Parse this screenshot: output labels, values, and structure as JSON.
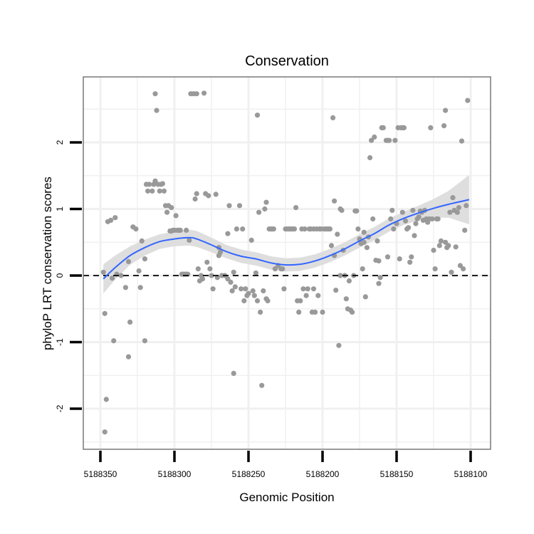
{
  "chart_data": {
    "type": "scatter",
    "title": "Conservation",
    "xlabel": "Genomic Position",
    "ylabel": "phyloP LRT conservation scores",
    "x_reversed": true,
    "xlim": [
      5188100,
      5188350
    ],
    "ylim": [
      -2.55,
      2.95
    ],
    "x_ticks": [
      5188350,
      5188300,
      5188250,
      5188200,
      5188150,
      5188100
    ],
    "y_ticks": [
      -2,
      -1,
      0,
      1,
      2
    ],
    "reference_line": {
      "y": 0,
      "style": "dashed"
    },
    "point_color": "#999999",
    "smooth_color": "#3366ff",
    "ribbon_color": "#dcdcdc",
    "panel_border_color": "#808080",
    "grid_color": "#f0f0f0",
    "points": [
      [
        5188348,
        0.05
      ],
      [
        5188347,
        -0.57
      ],
      [
        5188346,
        -1.86
      ],
      [
        5188347,
        -2.35
      ],
      [
        5188345,
        0.81
      ],
      [
        5188343,
        0.83
      ],
      [
        5188341,
        -0.98
      ],
      [
        5188340,
        0.87
      ],
      [
        5188342,
        -0.04
      ],
      [
        5188339,
        0.02
      ],
      [
        5188336,
        0.0
      ],
      [
        5188333,
        -0.18
      ],
      [
        5188331,
        0.21
      ],
      [
        5188331,
        -1.22
      ],
      [
        5188330,
        -0.7
      ],
      [
        5188328,
        0.73
      ],
      [
        5188326,
        0.7
      ],
      [
        5188324,
        0.07
      ],
      [
        5188323,
        -0.18
      ],
      [
        5188322,
        0.52
      ],
      [
        5188320,
        -0.98
      ],
      [
        5188320,
        0.25
      ],
      [
        5188319,
        1.37
      ],
      [
        5188318,
        1.27
      ],
      [
        5188317,
        1.37
      ],
      [
        5188315,
        1.27
      ],
      [
        5188314,
        1.37
      ],
      [
        5188313,
        1.42
      ],
      [
        5188313,
        2.73
      ],
      [
        5188312,
        2.48
      ],
      [
        5188311,
        1.37
      ],
      [
        5188310,
        1.27
      ],
      [
        5188309,
        1.37
      ],
      [
        5188308,
        1.38
      ],
      [
        5188307,
        1.27
      ],
      [
        5188306,
        1.05
      ],
      [
        5188305,
        0.95
      ],
      [
        5188304,
        1.05
      ],
      [
        5188303,
        0.67
      ],
      [
        5188302,
        0.67
      ],
      [
        5188301,
        0.68
      ],
      [
        5188299,
        0.9
      ],
      [
        5188298,
        0.68
      ],
      [
        5188297,
        0.68
      ],
      [
        5188296,
        0.68
      ],
      [
        5188295,
        0.02
      ],
      [
        5188294,
        0.02
      ],
      [
        5188293,
        0.02
      ],
      [
        5188292,
        0.02
      ],
      [
        5188291,
        0.02
      ],
      [
        5188290,
        0.53
      ],
      [
        5188289,
        2.73
      ],
      [
        5188287,
        2.73
      ],
      [
        5188285,
        2.73
      ],
      [
        5188286,
        1.15
      ],
      [
        5188285,
        1.23
      ],
      [
        5188284,
        0.1
      ],
      [
        5188283,
        -0.08
      ],
      [
        5188282,
        0.0
      ],
      [
        5188281,
        -0.05
      ],
      [
        5188280,
        2.74
      ],
      [
        5188279,
        1.23
      ],
      [
        5188278,
        0.2
      ],
      [
        5188277,
        1.2
      ],
      [
        5188276,
        0.1
      ],
      [
        5188275,
        0.0
      ],
      [
        5188274,
        -0.2
      ],
      [
        5188272,
        1.22
      ],
      [
        5188271,
        -0.03
      ],
      [
        5188270,
        0.42
      ],
      [
        5188269,
        0.35
      ],
      [
        5188268,
        0.0
      ],
      [
        5188266,
        0.0
      ],
      [
        5188264,
        -0.05
      ],
      [
        5188264,
        0.63
      ],
      [
        5188263,
        1.05
      ],
      [
        5188262,
        -0.1
      ],
      [
        5188261,
        -0.23
      ],
      [
        5188260,
        -1.47
      ],
      [
        5188259,
        -0.17
      ],
      [
        5188258,
        0.7
      ],
      [
        5188256,
        1.05
      ],
      [
        5188255,
        -0.2
      ],
      [
        5188254,
        0.7
      ],
      [
        5188253,
        -0.38
      ],
      [
        5188252,
        -0.2
      ],
      [
        5188251,
        -0.3
      ],
      [
        5188250,
        -0.27
      ],
      [
        5188248,
        0.53
      ],
      [
        5188247,
        -0.23
      ],
      [
        5188246,
        -0.3
      ],
      [
        5188245,
        0.04
      ],
      [
        5188244,
        2.41
      ],
      [
        5188244,
        -0.38
      ],
      [
        5188243,
        0.95
      ],
      [
        5188242,
        -0.55
      ],
      [
        5188241,
        -1.65
      ],
      [
        5188240,
        -0.23
      ],
      [
        5188239,
        1.0
      ],
      [
        5188238,
        1.1
      ],
      [
        5188237,
        -0.38
      ],
      [
        5188236,
        0.7
      ],
      [
        5188235,
        0.7
      ],
      [
        5188234,
        0.7
      ],
      [
        5188233,
        0.7
      ],
      [
        5188232,
        0.1
      ],
      [
        5188230,
        0.15
      ],
      [
        5188228,
        0.1
      ],
      [
        5188227,
        0.1
      ],
      [
        5188226,
        -0.2
      ],
      [
        5188225,
        0.7
      ],
      [
        5188224,
        0.7
      ],
      [
        5188223,
        0.7
      ],
      [
        5188222,
        0.7
      ],
      [
        5188221,
        0.7
      ],
      [
        5188220,
        0.7
      ],
      [
        5188219,
        0.7
      ],
      [
        5188218,
        1.02
      ],
      [
        5188217,
        -0.38
      ],
      [
        5188216,
        -0.55
      ],
      [
        5188215,
        -0.38
      ],
      [
        5188214,
        0.7
      ],
      [
        5188213,
        -0.2
      ],
      [
        5188212,
        0.7
      ],
      [
        5188211,
        -0.3
      ],
      [
        5188210,
        -0.2
      ],
      [
        5188209,
        0.7
      ],
      [
        5188208,
        0.7
      ],
      [
        5188207,
        -0.55
      ],
      [
        5188206,
        0.7
      ],
      [
        5188205,
        -0.55
      ],
      [
        5188204,
        0.7
      ],
      [
        5188203,
        -0.3
      ],
      [
        5188202,
        0.7
      ],
      [
        5188201,
        0.7
      ],
      [
        5188200,
        -0.55
      ],
      [
        5188199,
        0.7
      ],
      [
        5188198,
        0.7
      ],
      [
        5188197,
        0.7
      ],
      [
        5188196,
        0.7
      ],
      [
        5188195,
        0.7
      ],
      [
        5188194,
        0.45
      ],
      [
        5188193,
        2.37
      ],
      [
        5188192,
        0.3
      ],
      [
        5188192,
        1.12
      ],
      [
        5188191,
        -0.22
      ],
      [
        5188190,
        0.62
      ],
      [
        5188189,
        -1.05
      ],
      [
        5188188,
        1.0
      ],
      [
        5188187,
        0.98
      ],
      [
        5188186,
        0.38
      ],
      [
        5188185,
        0.0
      ],
      [
        5188184,
        -0.35
      ],
      [
        5188183,
        -0.5
      ],
      [
        5188182,
        -0.08
      ],
      [
        5188181,
        -0.52
      ],
      [
        5188180,
        -0.55
      ],
      [
        5188179,
        0.0
      ],
      [
        5188178,
        0.97
      ],
      [
        5188177,
        0.97
      ],
      [
        5188176,
        0.7
      ],
      [
        5188175,
        0.55
      ],
      [
        5188174,
        0.48
      ],
      [
        5188173,
        0.1
      ],
      [
        5188172,
        0.5
      ],
      [
        5188171,
        -0.32
      ],
      [
        5188170,
        0.42
      ],
      [
        5188169,
        0.58
      ],
      [
        5188168,
        1.77
      ],
      [
        5188167,
        2.03
      ],
      [
        5188166,
        0.85
      ],
      [
        5188165,
        2.08
      ],
      [
        5188164,
        0.23
      ],
      [
        5188163,
        0.52
      ],
      [
        5188162,
        -0.12
      ],
      [
        5188162,
        0.22
      ],
      [
        5188161,
        -0.03
      ],
      [
        5188160,
        2.22
      ],
      [
        5188159,
        2.22
      ],
      [
        5188157,
        2.03
      ],
      [
        5188156,
        2.03
      ],
      [
        5188155,
        2.03
      ],
      [
        5188154,
        0.85
      ],
      [
        5188153,
        0.98
      ],
      [
        5188152,
        0.7
      ],
      [
        5188151,
        2.03
      ],
      [
        5188150,
        0.78
      ],
      [
        5188149,
        2.22
      ],
      [
        5188148,
        0.25
      ],
      [
        5188147,
        2.22
      ],
      [
        5188146,
        2.22
      ],
      [
        5188145,
        2.22
      ],
      [
        5188144,
        0.82
      ],
      [
        5188143,
        0.7
      ],
      [
        5188142,
        0.72
      ],
      [
        5188141,
        0.2
      ],
      [
        5188140,
        0.28
      ],
      [
        5188139,
        0.98
      ],
      [
        5188138,
        0.6
      ],
      [
        5188137,
        0.78
      ],
      [
        5188136,
        0.85
      ],
      [
        5188135,
        0.88
      ],
      [
        5188134,
        0.97
      ],
      [
        5188133,
        0.95
      ],
      [
        5188132,
        0.83
      ],
      [
        5188131,
        0.98
      ],
      [
        5188130,
        0.85
      ],
      [
        5188129,
        0.8
      ],
      [
        5188128,
        0.85
      ],
      [
        5188127,
        2.22
      ],
      [
        5188126,
        0.85
      ],
      [
        5188125,
        0.38
      ],
      [
        5188124,
        0.1
      ],
      [
        5188123,
        0.85
      ],
      [
        5188122,
        0.85
      ],
      [
        5188121,
        0.45
      ],
      [
        5188120,
        0.52
      ],
      [
        5188118,
        2.25
      ],
      [
        5188117,
        2.48
      ],
      [
        5188116,
        0.42
      ],
      [
        5188115,
        0.45
      ],
      [
        5188114,
        0.95
      ],
      [
        5188113,
        0.05
      ],
      [
        5188112,
        1.17
      ],
      [
        5188111,
        0.98
      ],
      [
        5188110,
        0.43
      ],
      [
        5188109,
        0.95
      ],
      [
        5188108,
        1.02
      ],
      [
        5188107,
        0.15
      ],
      [
        5188106,
        2.02
      ],
      [
        5188105,
        0.1
      ],
      [
        5188104,
        0.68
      ],
      [
        5188103,
        1.05
      ],
      [
        5188102,
        2.63
      ],
      [
        5188117,
        0.5
      ],
      [
        5188146,
        0.95
      ],
      [
        5188300,
        0.68
      ],
      [
        5188302,
        1.02
      ],
      [
        5188292,
        0.68
      ],
      [
        5188270,
        0.3
      ],
      [
        5188260,
        0.05
      ],
      [
        5188238,
        -0.35
      ],
      [
        5188206,
        -0.2
      ],
      [
        5188188,
        0.0
      ],
      [
        5188172,
        0.65
      ],
      [
        5188156,
        0.28
      ]
    ],
    "smooth": [
      [
        5188348,
        -0.05
      ],
      [
        5188340,
        0.12
      ],
      [
        5188330,
        0.3
      ],
      [
        5188320,
        0.42
      ],
      [
        5188310,
        0.51
      ],
      [
        5188300,
        0.55
      ],
      [
        5188290,
        0.57
      ],
      [
        5188285,
        0.55
      ],
      [
        5188275,
        0.46
      ],
      [
        5188265,
        0.36
      ],
      [
        5188255,
        0.29
      ],
      [
        5188245,
        0.25
      ],
      [
        5188235,
        0.19
      ],
      [
        5188225,
        0.16
      ],
      [
        5188215,
        0.17
      ],
      [
        5188205,
        0.22
      ],
      [
        5188195,
        0.3
      ],
      [
        5188185,
        0.4
      ],
      [
        5188175,
        0.52
      ],
      [
        5188165,
        0.63
      ],
      [
        5188155,
        0.76
      ],
      [
        5188145,
        0.86
      ],
      [
        5188135,
        0.94
      ],
      [
        5188125,
        1.01
      ],
      [
        5188115,
        1.07
      ],
      [
        5188101,
        1.14
      ]
    ],
    "ribbon_halfwidth": [
      0.22,
      0.18,
      0.14,
      0.12,
      0.11,
      0.11,
      0.12,
      0.12,
      0.11,
      0.1,
      0.1,
      0.1,
      0.1,
      0.1,
      0.1,
      0.1,
      0.1,
      0.1,
      0.1,
      0.1,
      0.1,
      0.1,
      0.11,
      0.14,
      0.2,
      0.37
    ]
  }
}
